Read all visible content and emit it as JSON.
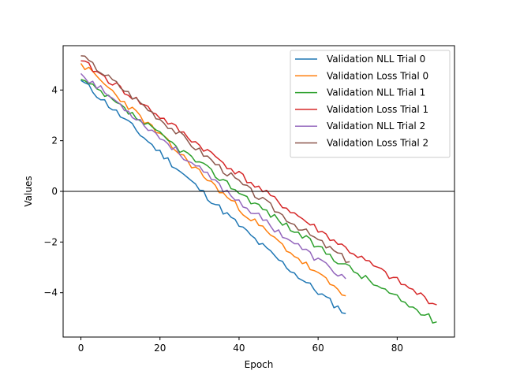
{
  "chart_data": {
    "type": "line",
    "title": "",
    "xlabel": "Epoch",
    "ylabel": "Values",
    "xlim": [
      -4.5,
      94.5
    ],
    "ylim": [
      -5.75,
      5.75
    ],
    "xticks": [
      0,
      20,
      40,
      60,
      80
    ],
    "yticks": [
      -4,
      -2,
      0,
      2,
      4
    ],
    "grid": false,
    "hline": 0,
    "legend": "top-right",
    "series": [
      {
        "name": "Validation NLL Trial 0",
        "color": "#1f77b4",
        "start": 4.38,
        "end": -4.82,
        "n": 68,
        "seed": 11,
        "x_start": 0
      },
      {
        "name": "Validation Loss Trial 0",
        "color": "#ff7f0e",
        "start": 5.05,
        "end": -4.12,
        "n": 68,
        "seed": 23,
        "x_start": 0
      },
      {
        "name": "Validation NLL Trial 1",
        "color": "#2ca02c",
        "start": 4.42,
        "end": -5.15,
        "n": 91,
        "seed": 37,
        "x_start": 0
      },
      {
        "name": "Validation Loss Trial 1",
        "color": "#d62728",
        "start": 5.15,
        "end": -4.48,
        "n": 91,
        "seed": 41,
        "x_start": 0
      },
      {
        "name": "Validation NLL Trial 2",
        "color": "#9467bd",
        "start": 4.65,
        "end": -3.45,
        "n": 68,
        "seed": 53,
        "x_start": 0
      },
      {
        "name": "Validation Loss Trial 2",
        "color": "#8c564b",
        "start": 5.35,
        "end": -2.78,
        "n": 69,
        "seed": 67,
        "x_start": 0
      }
    ]
  }
}
